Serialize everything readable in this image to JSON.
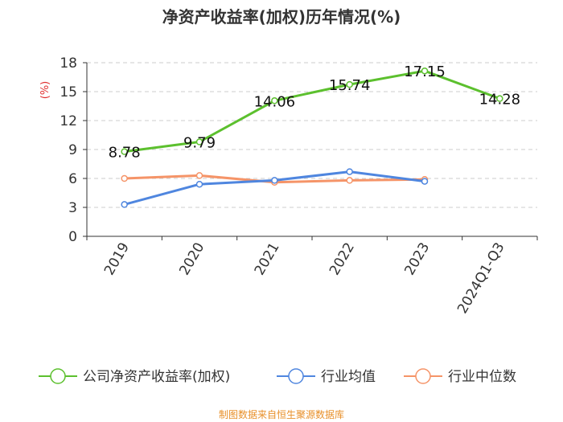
{
  "chart_data": {
    "type": "line",
    "title": "净资产收益率(加权)历年情况(%)",
    "ylabel": "(%)",
    "xlabel": "",
    "categories": [
      "2019",
      "2020",
      "2021",
      "2022",
      "2023",
      "2024Q1-Q3"
    ],
    "ylim": [
      0,
      18
    ],
    "yticks": [
      0,
      3,
      6,
      9,
      12,
      15,
      18
    ],
    "grid": true,
    "legend_position": "bottom",
    "series": [
      {
        "name": "公司净资产收益率(加权)",
        "color": "#5cc02e",
        "values": [
          8.78,
          9.79,
          14.06,
          15.74,
          17.15,
          14.28
        ],
        "labels": [
          "8.78",
          "9.79",
          "14.06",
          "15.74",
          "17.15",
          "14.28"
        ]
      },
      {
        "name": "行业均值",
        "color": "#4f86df",
        "values": [
          3.3,
          5.4,
          5.8,
          6.7,
          5.7,
          null
        ]
      },
      {
        "name": "行业中位数",
        "color": "#f59468",
        "values": [
          6.0,
          6.3,
          5.6,
          5.8,
          5.9,
          null
        ]
      }
    ]
  },
  "footer": "制图数据来自恒生聚源数据库",
  "colors": {
    "ylabel": "#e03030",
    "grid": "#cccccc",
    "axis": "#333333"
  }
}
